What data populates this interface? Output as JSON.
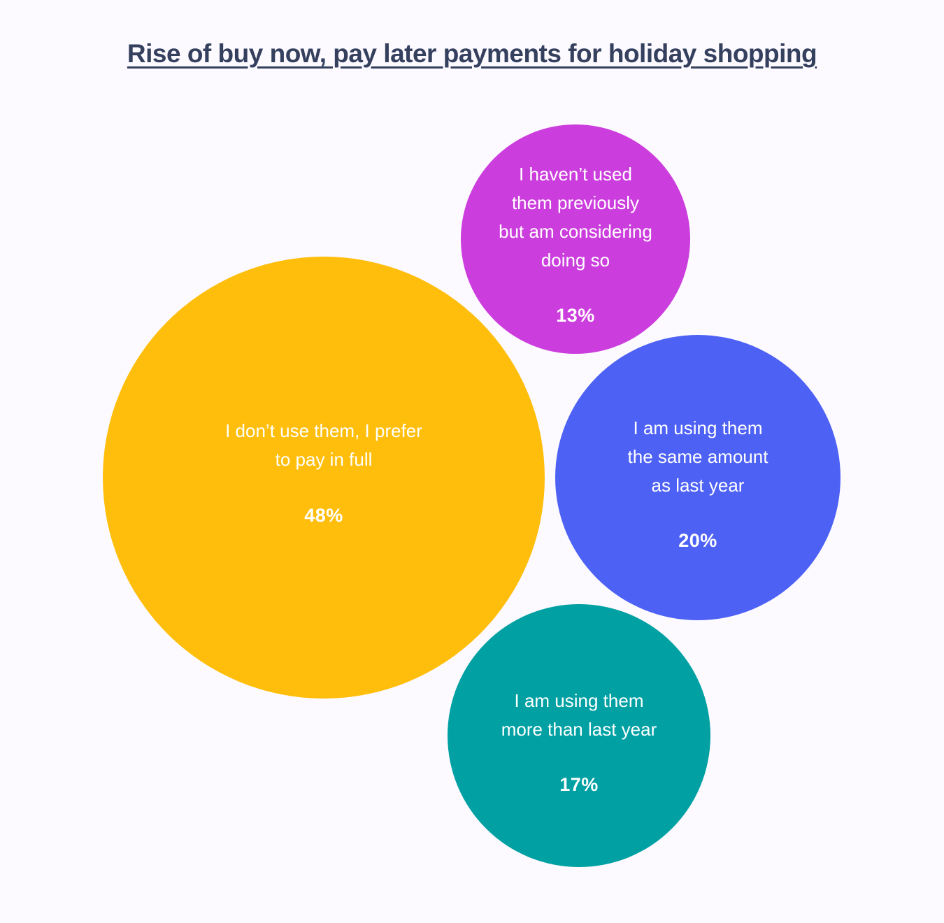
{
  "chart_data": {
    "type": "bubble",
    "title": "Rise of buy now, pay later payments for holiday shopping",
    "unit": "%",
    "series": [
      {
        "label": "I don’t use them, I prefer\nto pay in full",
        "value": 48,
        "value_label": "48%",
        "color": "#ffbe0b"
      },
      {
        "label": "I haven’t used\nthem previously\nbut am considering\ndoing so",
        "value": 13,
        "value_label": "13%",
        "color": "#cc3ddd"
      },
      {
        "label": "I am using them\nthe same amount\nas last year",
        "value": 20,
        "value_label": "20%",
        "color": "#4d61f4"
      },
      {
        "label": "I am using them\nmore than last year",
        "value": 17,
        "value_label": "17%",
        "color": "#00a0a3"
      }
    ]
  }
}
